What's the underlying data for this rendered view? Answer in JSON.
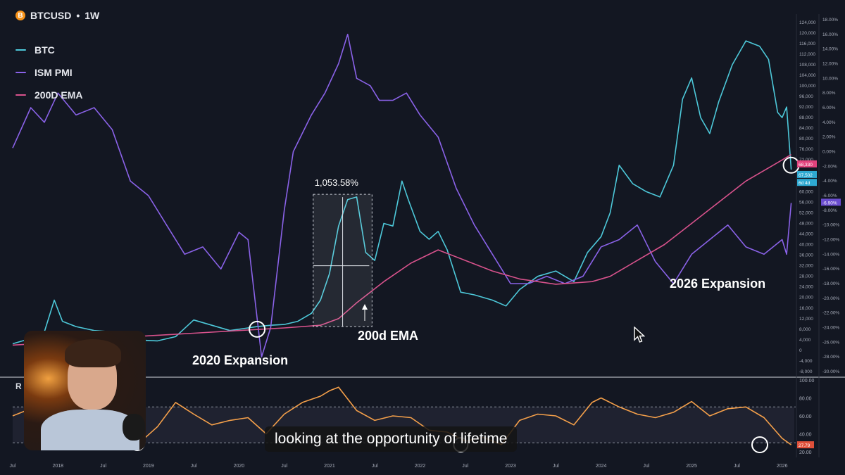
{
  "header": {
    "symbol": "BTCUSD",
    "separator": "•",
    "interval": "1W",
    "coin_icon": "bitcoin-icon",
    "coin_glyph": "B"
  },
  "legend": [
    {
      "label": "BTC",
      "color": "#4dc8d9"
    },
    {
      "label": "ISM PMI",
      "color": "#8a62e8"
    },
    {
      "label": "200D EMA",
      "color": "#d8528c"
    }
  ],
  "annotations": {
    "range_pct": "1,053.58%",
    "expansion_2020": "2020 Expansion",
    "expansion_2026": "2026 Expansion",
    "ema_label": "200d EMA",
    "rsi_label": "R"
  },
  "caption": {
    "highlight": "looking",
    "rest": " at the opportunity of lifetime"
  },
  "price_tags": {
    "btc_top": "68,330",
    "btc_mid": "67,502",
    "btc_small": "6d 4d",
    "pmi_pct": "-6.90%",
    "rsi": "27.79"
  },
  "colors": {
    "background": "#131722",
    "btc": "#4dc8d9",
    "pmi": "#8a62e8",
    "ema": "#d8528c",
    "rsi": "#f5a04a"
  },
  "chart_data": {
    "type": "line",
    "x_tick_labels": [
      "Jul",
      "2018",
      "Jul",
      "2019",
      "Jul",
      "2020",
      "Jul",
      "2021",
      "Jul",
      "2022",
      "Jul",
      "2023",
      "Jul",
      "2024",
      "Jul",
      "2025",
      "Jul",
      "2026"
    ],
    "x_range": [
      2017.5,
      2026.15
    ],
    "price_axis": {
      "ticks": [
        124000,
        120000,
        116000,
        112000,
        108000,
        104000,
        100000,
        96000,
        92000,
        88000,
        84000,
        80000,
        76000,
        72000,
        64000,
        60000,
        56000,
        52000,
        48000,
        44000,
        40000,
        36000,
        32000,
        28000,
        24000,
        20000,
        16000,
        12000,
        8000,
        4000,
        0,
        -4000,
        -8000
      ],
      "tick_labels": [
        "124,000",
        "120,000",
        "116,000",
        "112,000",
        "108,000",
        "104,000",
        "100,000",
        "96,000",
        "92,000",
        "88,000",
        "84,000",
        "80,000",
        "76,000",
        "72,000",
        "64,000",
        "60,000",
        "56,000",
        "52,000",
        "48,000",
        "44,000",
        "40,000",
        "36,000",
        "32,000",
        "28,000",
        "24,000",
        "20,000",
        "16,000",
        "12,000",
        "8,000",
        "4,000",
        "0",
        "-4,000",
        "-8,000"
      ],
      "range": [
        -8000,
        125000
      ]
    },
    "pct_axis": {
      "ticks": [
        18,
        16,
        14,
        12,
        10,
        8,
        6,
        4,
        2,
        0,
        -2,
        -4,
        -6,
        -8,
        -10,
        -12,
        -14,
        -16,
        -18,
        -20,
        -22,
        -24,
        -26,
        -28,
        -30
      ],
      "tick_labels": [
        "18.00%",
        "16.00%",
        "14.00%",
        "12.00%",
        "10.00%",
        "8.00%",
        "6.00%",
        "4.00%",
        "2.00%",
        "0.00%",
        "-2.00%",
        "-4.00%",
        "-6.00%",
        "-8.00%",
        "-10.00%",
        "-12.00%",
        "-14.00%",
        "-16.00%",
        "-18.00%",
        "-20.00%",
        "-22.00%",
        "-24.00%",
        "-26.00%",
        "-28.00%",
        "-30.00%"
      ],
      "range": [
        -30,
        18
      ]
    },
    "rsi_axis": {
      "ticks": [
        100,
        80,
        60,
        40,
        20
      ],
      "tick_labels": [
        "100.00",
        "80.00",
        "60.00",
        "40.00",
        "20.00"
      ],
      "range": [
        20,
        100
      ],
      "bands": [
        70,
        30
      ]
    },
    "series": [
      {
        "name": "BTC",
        "axis": "price",
        "x": [
          2017.5,
          2017.7,
          2017.85,
          2017.96,
          2018.05,
          2018.2,
          2018.4,
          2018.6,
          2018.8,
          2018.95,
          2019.1,
          2019.3,
          2019.5,
          2019.7,
          2019.9,
          2020.1,
          2020.2,
          2020.35,
          2020.5,
          2020.65,
          2020.8,
          2020.9,
          2021.0,
          2021.1,
          2021.2,
          2021.3,
          2021.4,
          2021.5,
          2021.6,
          2021.7,
          2021.8,
          2021.87,
          2022.0,
          2022.1,
          2022.2,
          2022.3,
          2022.45,
          2022.6,
          2022.8,
          2022.95,
          2023.1,
          2023.3,
          2023.5,
          2023.7,
          2023.85,
          2024.0,
          2024.1,
          2024.2,
          2024.35,
          2024.5,
          2024.65,
          2024.8,
          2024.9,
          2025.0,
          2025.1,
          2025.2,
          2025.3,
          2025.45,
          2025.6,
          2025.75,
          2025.85,
          2025.95,
          2026.0,
          2026.05,
          2026.1
        ],
        "values": [
          2500,
          4500,
          7000,
          19000,
          11000,
          9000,
          7500,
          7000,
          6500,
          3800,
          3600,
          5200,
          11500,
          9500,
          7500,
          8500,
          9000,
          9500,
          9800,
          11000,
          14000,
          19000,
          29000,
          47000,
          57000,
          58000,
          37000,
          34000,
          48000,
          47000,
          64000,
          57000,
          45000,
          42000,
          45000,
          38000,
          22000,
          21000,
          19000,
          16800,
          23000,
          28000,
          30000,
          26000,
          37000,
          43000,
          52000,
          70000,
          63000,
          60000,
          58000,
          70000,
          95000,
          103000,
          88000,
          82000,
          94000,
          108000,
          117000,
          115000,
          110000,
          90000,
          88000,
          92000,
          68330
        ]
      },
      {
        "name": "ISM PMI",
        "axis": "pct",
        "x": [
          2017.5,
          2017.7,
          2017.85,
          2018.0,
          2018.2,
          2018.4,
          2018.6,
          2018.8,
          2019.0,
          2019.2,
          2019.4,
          2019.6,
          2019.8,
          2020.0,
          2020.1,
          2020.25,
          2020.35,
          2020.5,
          2020.6,
          2020.8,
          2020.95,
          2021.1,
          2021.2,
          2021.3,
          2021.45,
          2021.55,
          2021.7,
          2021.85,
          2022.0,
          2022.2,
          2022.4,
          2022.6,
          2022.8,
          2023.0,
          2023.2,
          2023.4,
          2023.6,
          2023.8,
          2024.0,
          2024.2,
          2024.4,
          2024.6,
          2024.8,
          2025.0,
          2025.2,
          2025.4,
          2025.6,
          2025.8,
          2026.0,
          2026.05,
          2026.1
        ],
        "values": [
          0.5,
          6,
          4,
          8,
          5,
          6,
          3,
          -4,
          -6,
          -10,
          -14,
          -13,
          -16,
          -11,
          -12,
          -28,
          -24,
          -8,
          0,
          5,
          8,
          12,
          16,
          10,
          9,
          7,
          7,
          8,
          5,
          2,
          -5,
          -10,
          -14,
          -18,
          -18,
          -17,
          -18,
          -17,
          -13,
          -12,
          -10,
          -15,
          -18,
          -14,
          -12,
          -10,
          -13,
          -14,
          -12,
          -14,
          -7
        ]
      },
      {
        "name": "200D EMA",
        "axis": "price",
        "x": [
          2017.5,
          2018.0,
          2018.5,
          2019.0,
          2019.5,
          2020.0,
          2020.5,
          2020.9,
          2021.1,
          2021.3,
          2021.6,
          2021.9,
          2022.2,
          2022.5,
          2022.8,
          2023.1,
          2023.5,
          2023.9,
          2024.1,
          2024.4,
          2024.7,
          2025.0,
          2025.3,
          2025.6,
          2025.9,
          2026.1
        ],
        "values": [
          2000,
          3000,
          4500,
          5500,
          6500,
          7500,
          8500,
          9500,
          12000,
          18000,
          26000,
          33000,
          38000,
          34000,
          30000,
          27000,
          25000,
          26000,
          28000,
          34000,
          40000,
          48000,
          56000,
          64000,
          70000,
          74000
        ]
      },
      {
        "name": "RSI",
        "axis": "rsi",
        "x": [
          2017.5,
          2017.7,
          2017.9,
          2018.1,
          2018.3,
          2018.5,
          2018.7,
          2018.9,
          2019.1,
          2019.3,
          2019.5,
          2019.7,
          2019.9,
          2020.1,
          2020.3,
          2020.5,
          2020.7,
          2020.9,
          2021.0,
          2021.1,
          2021.3,
          2021.5,
          2021.7,
          2021.9,
          2022.1,
          2022.3,
          2022.5,
          2022.7,
          2022.9,
          2023.1,
          2023.3,
          2023.5,
          2023.7,
          2023.9,
          2024.0,
          2024.2,
          2024.4,
          2024.6,
          2024.8,
          2025.0,
          2025.2,
          2025.4,
          2025.6,
          2025.8,
          2026.0,
          2026.1
        ],
        "values": [
          60,
          68,
          74,
          50,
          45,
          40,
          45,
          30,
          48,
          75,
          62,
          50,
          55,
          58,
          40,
          62,
          75,
          82,
          88,
          92,
          66,
          55,
          60,
          58,
          44,
          42,
          32,
          36,
          28,
          55,
          62,
          60,
          50,
          75,
          80,
          70,
          62,
          58,
          64,
          76,
          60,
          68,
          70,
          58,
          35,
          27.79
        ]
      }
    ]
  }
}
